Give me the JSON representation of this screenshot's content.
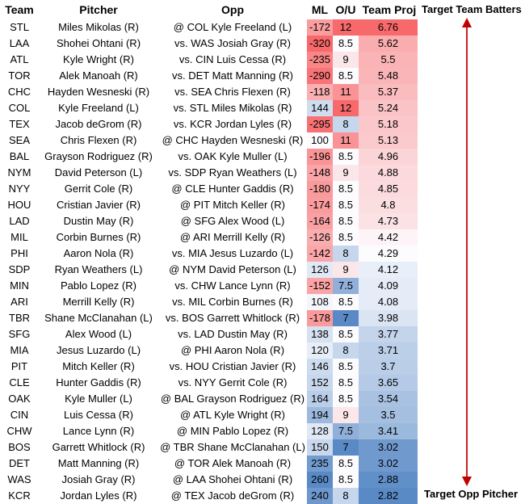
{
  "headers": {
    "team": "Team",
    "pitcher": "Pitcher",
    "opp": "Opp",
    "ml": "ML",
    "ou": "O/U",
    "proj": "Team Proj"
  },
  "annotations": {
    "top": "Target Team Batters",
    "bottom": "Target Opp Pitcher"
  },
  "colors": {
    "red_strong": "#f8696b",
    "blue_strong": "#5a8ac6",
    "white": "#fcfcff",
    "arrow": "#c00000"
  },
  "rows": [
    {
      "team": "STL",
      "pitcher": "Miles Mikolas (R)",
      "opp": "@ COL Kyle Freeland (L)",
      "ml": "-172",
      "ou": "12",
      "proj": "6.76"
    },
    {
      "team": "LAA",
      "pitcher": "Shohei Ohtani (R)",
      "opp": "vs. WAS Josiah Gray (R)",
      "ml": "-320",
      "ou": "8.5",
      "proj": "5.62"
    },
    {
      "team": "ATL",
      "pitcher": "Kyle Wright (R)",
      "opp": "vs. CIN Luis Cessa (R)",
      "ml": "-235",
      "ou": "9",
      "proj": "5.5"
    },
    {
      "team": "TOR",
      "pitcher": "Alek Manoah (R)",
      "opp": "vs. DET Matt Manning (R)",
      "ml": "-290",
      "ou": "8.5",
      "proj": "5.48"
    },
    {
      "team": "CHC",
      "pitcher": "Hayden Wesneski (R)",
      "opp": "vs. SEA Chris Flexen (R)",
      "ml": "-118",
      "ou": "11",
      "proj": "5.37"
    },
    {
      "team": "COL",
      "pitcher": "Kyle Freeland (L)",
      "opp": "vs. STL Miles Mikolas (R)",
      "ml": "144",
      "ou": "12",
      "proj": "5.24"
    },
    {
      "team": "TEX",
      "pitcher": "Jacob deGrom (R)",
      "opp": "vs. KCR Jordan Lyles (R)",
      "ml": "-295",
      "ou": "8",
      "proj": "5.18"
    },
    {
      "team": "SEA",
      "pitcher": "Chris Flexen (R)",
      "opp": "@ CHC Hayden Wesneski (R)",
      "ml": "100",
      "ou": "11",
      "proj": "5.13"
    },
    {
      "team": "BAL",
      "pitcher": "Grayson Rodriguez (R)",
      "opp": "vs. OAK Kyle Muller (L)",
      "ml": "-196",
      "ou": "8.5",
      "proj": "4.96"
    },
    {
      "team": "NYM",
      "pitcher": "David Peterson (L)",
      "opp": "vs. SDP Ryan Weathers (L)",
      "ml": "-148",
      "ou": "9",
      "proj": "4.88"
    },
    {
      "team": "NYY",
      "pitcher": "Gerrit Cole (R)",
      "opp": "@ CLE Hunter Gaddis (R)",
      "ml": "-180",
      "ou": "8.5",
      "proj": "4.85"
    },
    {
      "team": "HOU",
      "pitcher": "Cristian Javier (R)",
      "opp": "@ PIT Mitch Keller (R)",
      "ml": "-174",
      "ou": "8.5",
      "proj": "4.8"
    },
    {
      "team": "LAD",
      "pitcher": "Dustin May (R)",
      "opp": "@ SFG Alex Wood (L)",
      "ml": "-164",
      "ou": "8.5",
      "proj": "4.73"
    },
    {
      "team": "MIL",
      "pitcher": "Corbin Burnes (R)",
      "opp": "@ ARI Merrill Kelly (R)",
      "ml": "-126",
      "ou": "8.5",
      "proj": "4.42"
    },
    {
      "team": "PHI",
      "pitcher": "Aaron Nola (R)",
      "opp": "vs. MIA Jesus Luzardo (L)",
      "ml": "-142",
      "ou": "8",
      "proj": "4.29"
    },
    {
      "team": "SDP",
      "pitcher": "Ryan Weathers (L)",
      "opp": "@ NYM David Peterson (L)",
      "ml": "126",
      "ou": "9",
      "proj": "4.12"
    },
    {
      "team": "MIN",
      "pitcher": "Pablo Lopez (R)",
      "opp": "vs. CHW Lance Lynn (R)",
      "ml": "-152",
      "ou": "7.5",
      "proj": "4.09"
    },
    {
      "team": "ARI",
      "pitcher": "Merrill Kelly (R)",
      "opp": "vs. MIL Corbin Burnes (R)",
      "ml": "108",
      "ou": "8.5",
      "proj": "4.08"
    },
    {
      "team": "TBR",
      "pitcher": "Shane McClanahan (L)",
      "opp": "vs. BOS Garrett Whitlock (R)",
      "ml": "-178",
      "ou": "7",
      "proj": "3.98"
    },
    {
      "team": "SFG",
      "pitcher": "Alex Wood (L)",
      "opp": "vs. LAD Dustin May (R)",
      "ml": "138",
      "ou": "8.5",
      "proj": "3.77"
    },
    {
      "team": "MIA",
      "pitcher": "Jesus Luzardo (L)",
      "opp": "@ PHI Aaron Nola (R)",
      "ml": "120",
      "ou": "8",
      "proj": "3.71"
    },
    {
      "team": "PIT",
      "pitcher": "Mitch Keller (R)",
      "opp": "vs. HOU Cristian Javier (R)",
      "ml": "146",
      "ou": "8.5",
      "proj": "3.7"
    },
    {
      "team": "CLE",
      "pitcher": "Hunter Gaddis (R)",
      "opp": "vs. NYY Gerrit Cole (R)",
      "ml": "152",
      "ou": "8.5",
      "proj": "3.65"
    },
    {
      "team": "OAK",
      "pitcher": "Kyle Muller (L)",
      "opp": "@ BAL Grayson Rodriguez (R)",
      "ml": "164",
      "ou": "8.5",
      "proj": "3.54"
    },
    {
      "team": "CIN",
      "pitcher": "Luis Cessa (R)",
      "opp": "@ ATL Kyle Wright (R)",
      "ml": "194",
      "ou": "9",
      "proj": "3.5"
    },
    {
      "team": "CHW",
      "pitcher": "Lance Lynn (R)",
      "opp": "@ MIN Pablo Lopez (R)",
      "ml": "128",
      "ou": "7.5",
      "proj": "3.41"
    },
    {
      "team": "BOS",
      "pitcher": "Garrett Whitlock (R)",
      "opp": "@ TBR Shane McClanahan (L)",
      "ml": "150",
      "ou": "7",
      "proj": "3.02"
    },
    {
      "team": "DET",
      "pitcher": "Matt Manning (R)",
      "opp": "@ TOR Alek Manoah (R)",
      "ml": "235",
      "ou": "8.5",
      "proj": "3.02"
    },
    {
      "team": "WAS",
      "pitcher": "Josiah Gray (R)",
      "opp": "@ LAA Shohei Ohtani (R)",
      "ml": "260",
      "ou": "8.5",
      "proj": "2.88"
    },
    {
      "team": "KCR",
      "pitcher": "Jordan Lyles (R)",
      "opp": "@ TEX Jacob deGrom (R)",
      "ml": "240",
      "ou": "8",
      "proj": "2.82"
    }
  ]
}
